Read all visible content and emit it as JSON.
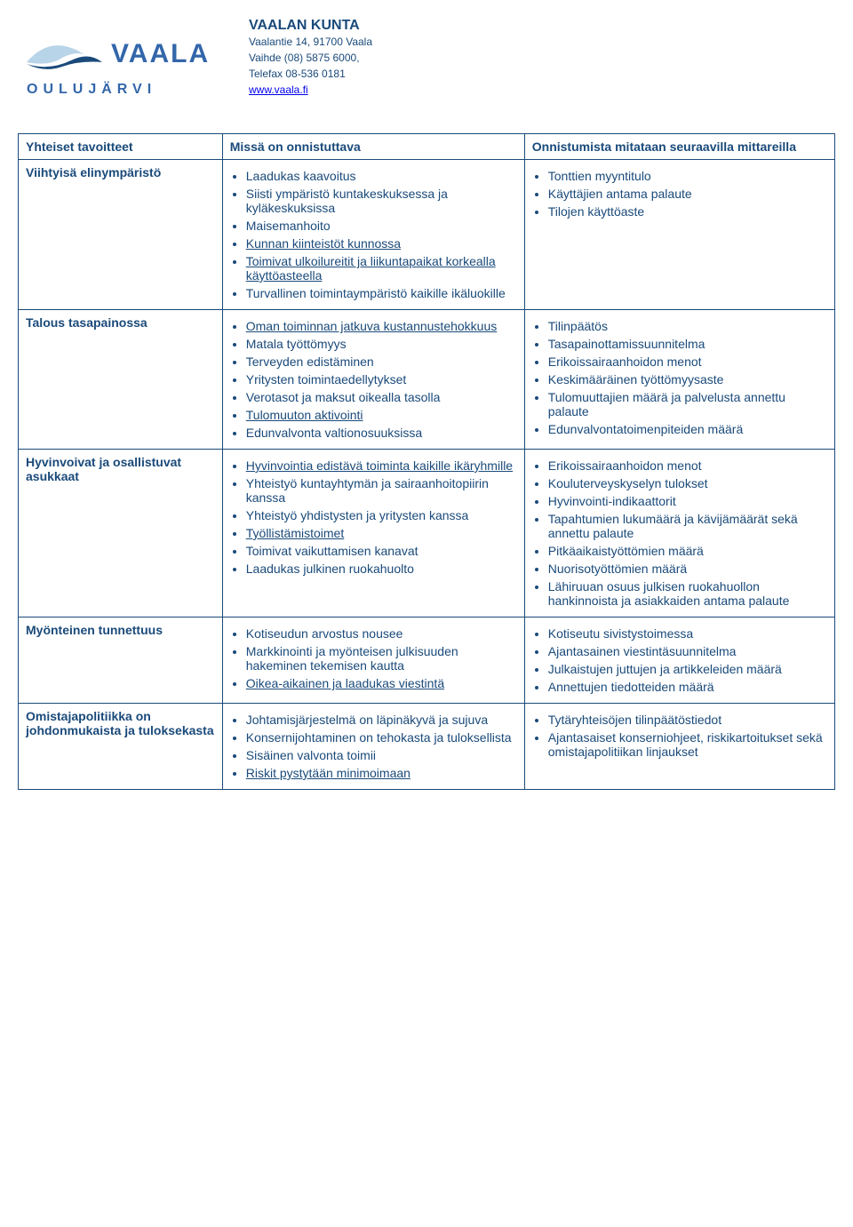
{
  "header": {
    "org_name": "VAALAN KUNTA",
    "addr1": "Vaalantie 14,  91700 Vaala",
    "addr2": "Vaihde (08) 5875 6000,",
    "addr3": "Telefax 08-536 0181",
    "link": "www.vaala.fi"
  },
  "logo": {
    "top_text": "VAALA",
    "bottom_text": "OULUJÄRVI",
    "letter_color": "#3366aa",
    "wave_light": "#b8d4e8",
    "wave_dark": "#1a4a7a"
  },
  "tableStyle": {
    "border_color": "#1a4a7a",
    "text_color": "#1a4a7a",
    "font_size_pt": 10.5
  },
  "columns": {
    "c1": "Yhteiset tavoitteet",
    "c2": "Missä on onnistuttava",
    "c3": "Onnistumista mitataan seuraavilla mittareilla"
  },
  "rows": [
    {
      "label": "Viihtyisä elinympäristö",
      "c2": [
        {
          "t": "Laadukas kaavoitus"
        },
        {
          "t": "Siisti ympäristö kuntakeskuksessa ja kyläkeskuksissa"
        },
        {
          "t": "Maisemanhoito"
        },
        {
          "t": "Kunnan kiinteistöt kunnossa",
          "u": true
        },
        {
          "t": "Toimivat ulkoilureitit ja liikuntapaikat korkealla käyttöasteella",
          "u": true
        },
        {
          "t": "Turvallinen toimintaympäristö kaikille ikäluokille"
        }
      ],
      "c3": [
        {
          "t": "Tonttien myyntitulo"
        },
        {
          "t": "Käyttäjien antama palaute"
        },
        {
          "t": "Tilojen käyttöaste"
        }
      ]
    },
    {
      "label": "Talous tasapainossa",
      "c2": [
        {
          "t": "Oman toiminnan jatkuva kustannustehokkuus",
          "u": true
        },
        {
          "t": "Matala työttömyys"
        },
        {
          "t": "Terveyden edistäminen"
        },
        {
          "t": "Yritysten toimintaedellytykset"
        },
        {
          "t": "Verotasot ja maksut oikealla tasolla"
        },
        {
          "t": "Tulomuuton aktivointi",
          "u": true
        },
        {
          "t": "Edunvalvonta valtionosuuksissa"
        }
      ],
      "c3": [
        {
          "t": "Tilinpäätös"
        },
        {
          "t": "Tasapainottamissuunnitelma"
        },
        {
          "t": "Erikoissairaanhoidon menot"
        },
        {
          "t": "Keskimääräinen työttömyysaste"
        },
        {
          "t": "Tulomuuttajien määrä ja palvelusta annettu palaute"
        },
        {
          "t": "Edunvalvontatoimenpiteiden määrä"
        }
      ]
    },
    {
      "label": "Hyvinvoivat ja osallistuvat asukkaat",
      "c2": [
        {
          "t": "Hyvinvointia edistävä toiminta kaikille ikäryhmille",
          "u": true
        },
        {
          "t": "Yhteistyö kuntayhtymän ja sairaanhoitopiirin kanssa"
        },
        {
          "t": "Yhteistyö yhdistysten ja yritysten kanssa"
        },
        {
          "t": "Työllistämistoimet",
          "u": true
        },
        {
          "t": "Toimivat vaikuttamisen kanavat"
        },
        {
          "t": "Laadukas julkinen ruokahuolto"
        }
      ],
      "c3": [
        {
          "t": "Erikoissairaanhoidon menot"
        },
        {
          "t": "Kouluterveyskyselyn tulokset"
        },
        {
          "t": "Hyvinvointi-indikaattorit"
        },
        {
          "t": "Tapahtumien lukumäärä ja kävijämäärät sekä annettu palaute"
        },
        {
          "t": "Pitkäaikaistyöttömien määrä"
        },
        {
          "t": "Nuorisotyöttömien määrä"
        },
        {
          "t": "Lähiruuan osuus julkisen ruokahuollon hankinnoista ja asiakkaiden antama palaute"
        }
      ]
    },
    {
      "label": "Myönteinen tunnettuus",
      "c2": [
        {
          "t": "Kotiseudun arvostus nousee"
        },
        {
          "t": "Markkinointi ja myönteisen julkisuuden hakeminen tekemisen kautta"
        },
        {
          "t": "Oikea-aikainen ja laadukas viestintä",
          "u": true
        }
      ],
      "c3": [
        {
          "t": "Kotiseutu sivistystoimessa"
        },
        {
          "t": "Ajantasainen viestintäsuunnitelma"
        },
        {
          "t": "Julkaistujen juttujen ja artikkeleiden määrä"
        },
        {
          "t": "Annettujen tiedotteiden määrä"
        }
      ]
    },
    {
      "label": "Omistajapolitiikka on johdonmukaista ja tuloksekasta",
      "c2": [
        {
          "t": "Johtamisjärjestelmä on läpinäkyvä ja sujuva"
        },
        {
          "t": "Konsernijohtaminen on tehokasta ja tuloksellista"
        },
        {
          "t": "Sisäinen valvonta toimii"
        },
        {
          "t": "Riskit pystytään minimoimaan",
          "u": true
        }
      ],
      "c3": [
        {
          "t": "Tytäryhteisöjen tilinpäätöstiedot"
        },
        {
          "t": "Ajantasaiset konserniohjeet, riskikartoitukset sekä omistajapolitiikan linjaukset"
        }
      ]
    }
  ]
}
